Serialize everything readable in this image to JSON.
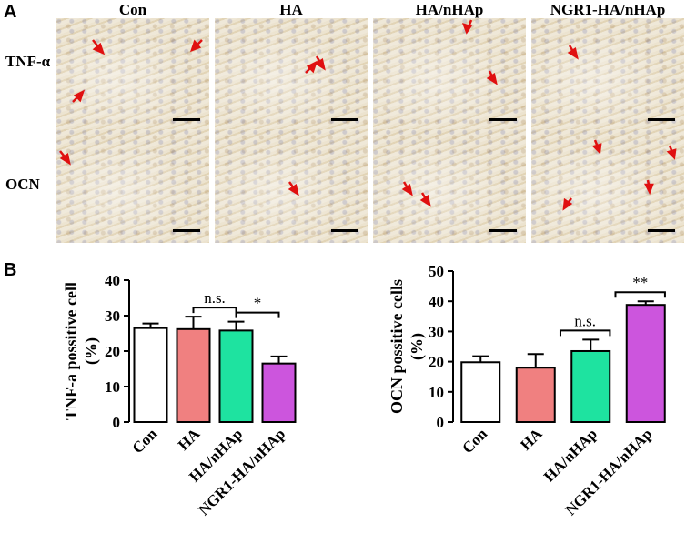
{
  "panel_a": {
    "label": "A",
    "columns": [
      "Con",
      "HA",
      "HA/nHAp",
      "NGR1-HA/nHAp"
    ],
    "rows": [
      "TNF-α",
      "OCN"
    ]
  },
  "panel_b": {
    "label": "B"
  },
  "chart_data": [
    {
      "type": "bar",
      "categories": [
        "Con",
        "HA",
        "HA/nHAp",
        "NGR1-HA/nHAp"
      ],
      "values": [
        26.5,
        26.2,
        25.8,
        16.5
      ],
      "errors": [
        1.3,
        3.5,
        2.5,
        2.0
      ],
      "colors": [
        "#ffffff",
        "#f08080",
        "#1ee3a0",
        "#cc55dd"
      ],
      "ylabel": "TNF-a possitive cell (%)",
      "ylabel_lines": [
        "TNF-a possitive cell",
        "(%)"
      ],
      "ylim": [
        0,
        40
      ],
      "yticks": [
        0,
        10,
        20,
        30,
        40
      ],
      "significance": [
        {
          "from": 1,
          "to": 2,
          "label": "n.s."
        },
        {
          "from": 2,
          "to": 3,
          "label": "*"
        }
      ]
    },
    {
      "type": "bar",
      "categories": [
        "Con",
        "HA",
        "HA/nHAp",
        "NGR1-HA/nHAp"
      ],
      "values": [
        19.8,
        18.0,
        23.5,
        38.8
      ],
      "errors": [
        2.0,
        4.5,
        3.8,
        1.2
      ],
      "colors": [
        "#ffffff",
        "#f08080",
        "#1ee3a0",
        "#cc55dd"
      ],
      "ylabel": "OCN possitive cells (%)",
      "ylabel_lines": [
        "OCN possitive cells",
        "(%)"
      ],
      "ylim": [
        0,
        50
      ],
      "yticks": [
        0,
        10,
        20,
        30,
        40,
        50
      ],
      "significance": [
        {
          "from": 2,
          "to": 2,
          "label": "n.s."
        },
        {
          "from": 3,
          "to": 3,
          "label": "**"
        }
      ]
    }
  ]
}
